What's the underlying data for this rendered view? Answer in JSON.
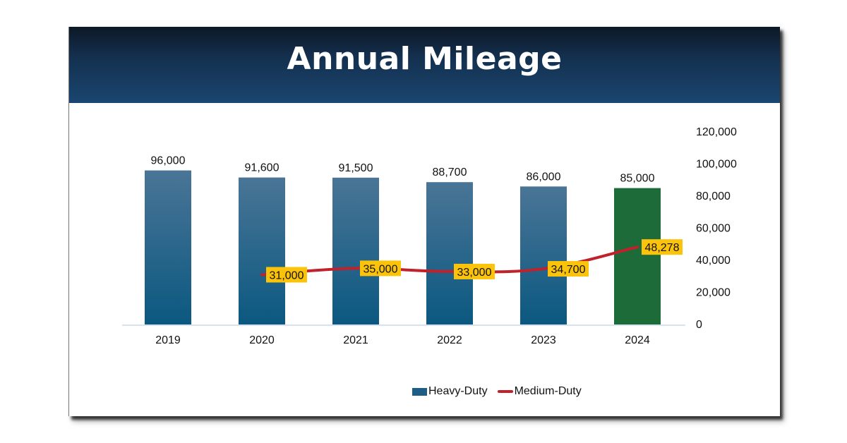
{
  "header": {
    "title": "Annual Mileage"
  },
  "colors": {
    "heavy_bar_top": "#4a7596",
    "heavy_bar_bottom": "#0b5880",
    "highlight_bar": "#1c6b38",
    "medium_line": "#c0212b",
    "label_box": "#fcc30b",
    "axis_line": "#d6e2ee"
  },
  "chart_data": {
    "type": "bar",
    "title": "Annual Mileage",
    "categories": [
      "2019",
      "2020",
      "2021",
      "2022",
      "2023",
      "2024"
    ],
    "series": [
      {
        "name": "Heavy-Duty",
        "type": "bar",
        "values": [
          96000,
          91600,
          91500,
          88700,
          86000,
          85000
        ],
        "labels": [
          "96,000",
          "91,600",
          "91,500",
          "88,700",
          "86,000",
          "85,000"
        ],
        "highlight_index": 5
      },
      {
        "name": "Medium-Duty",
        "type": "line",
        "values": [
          null,
          31000,
          35000,
          33000,
          34700,
          48278
        ],
        "labels": [
          "",
          "31,000",
          "35,000",
          "33,000",
          "34,700",
          "48,278"
        ]
      }
    ],
    "ylim": [
      0,
      120000
    ],
    "yticks": [
      0,
      20000,
      40000,
      60000,
      80000,
      100000,
      120000
    ],
    "ytick_labels": [
      "0",
      "20,000",
      "40,000",
      "60,000",
      "80,000",
      "100,000",
      "120,000"
    ],
    "y_axis_side": "right",
    "grid": false,
    "legend": {
      "position": "bottom",
      "entries": [
        "Heavy-Duty",
        "Medium-Duty"
      ]
    },
    "xlabel": "",
    "ylabel": ""
  }
}
